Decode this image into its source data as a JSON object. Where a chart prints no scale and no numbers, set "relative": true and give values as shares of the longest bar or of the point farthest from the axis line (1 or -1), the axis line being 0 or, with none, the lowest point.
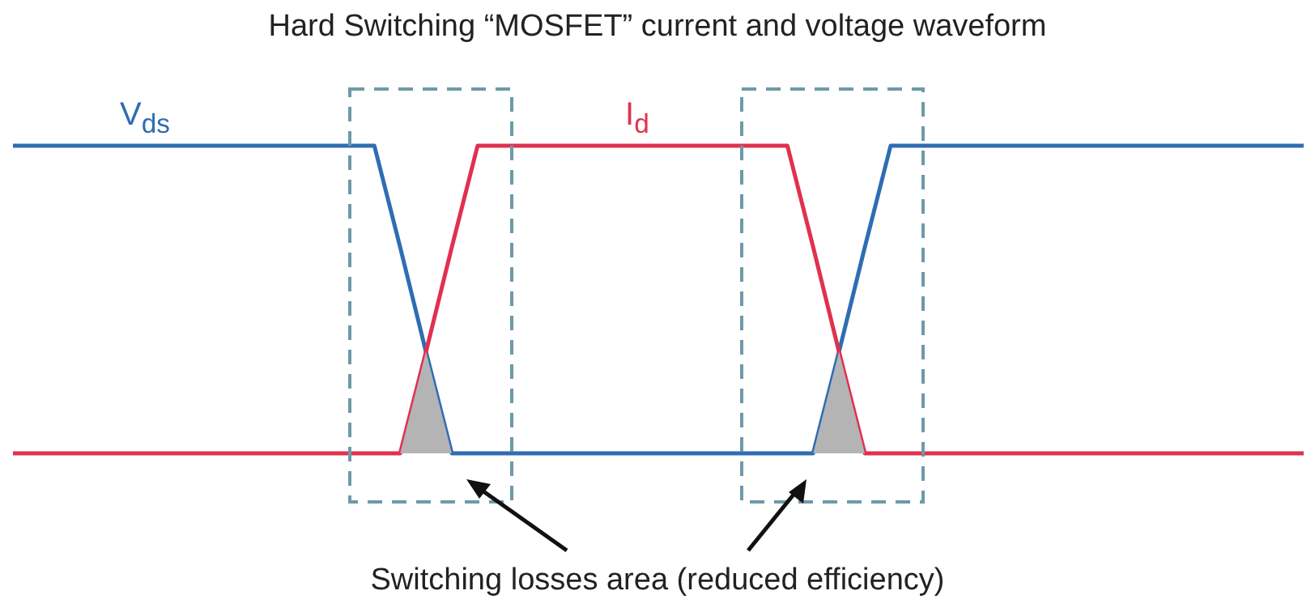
{
  "chart_data": {
    "type": "line",
    "title": "Hard Switching “MOSFET” current and voltage waveform",
    "relative": true,
    "legend": false,
    "annotations": [
      "Switching losses area (reduced efficiency)"
    ],
    "categories": [
      null,
      null,
      null,
      null,
      null,
      null,
      null,
      null,
      null,
      null,
      null,
      null,
      null,
      null,
      null,
      null,
      null,
      null,
      null,
      null,
      null,
      null,
      null,
      null,
      null,
      null,
      null,
      null,
      null,
      null,
      null,
      null,
      null,
      null,
      null,
      null,
      null,
      null,
      null,
      null,
      null,
      null,
      null,
      null,
      null,
      null,
      null,
      null,
      null,
      null,
      null
    ],
    "series": [
      {
        "name": "V$_{ds}$",
        "color": "#2f6db3",
        "values": [
          1,
          1,
          1,
          1,
          1,
          1,
          1,
          1,
          1,
          1,
          1,
          1,
          1,
          1,
          1,
          0.67,
          0.33,
          0,
          0,
          0,
          0,
          0,
          0,
          0,
          0,
          0,
          0,
          0,
          0,
          0,
          0,
          0,
          0.33,
          0.67,
          1,
          1,
          1,
          1,
          1,
          1,
          1,
          1,
          1,
          1,
          1,
          1,
          1,
          1,
          1,
          1,
          1
        ]
      },
      {
        "name": "I$_{d}$",
        "color": "#e0314f",
        "values": [
          0,
          0,
          0,
          0,
          0,
          0,
          0,
          0,
          0,
          0,
          0,
          0,
          0,
          0,
          0,
          0,
          0.33,
          0.67,
          1,
          1,
          1,
          1,
          1,
          1,
          1,
          1,
          1,
          1,
          1,
          1,
          1,
          0.67,
          0.33,
          0,
          0,
          0,
          0,
          0,
          0,
          0,
          0,
          0,
          0,
          0,
          0,
          0,
          0,
          0,
          0,
          0,
          0
        ]
      },
      {
        "type": "area",
        "color": "#b4b4b4",
        "values": [
          null,
          null,
          null,
          null,
          null,
          null,
          null,
          null,
          null,
          null,
          null,
          null,
          null,
          null,
          null,
          0,
          0.33,
          0,
          null,
          null,
          null,
          null,
          null,
          null,
          null,
          null,
          null,
          null,
          null,
          null,
          null,
          0,
          0.33,
          0,
          null,
          null,
          null,
          null,
          null,
          null,
          null,
          null,
          null,
          null,
          null,
          null,
          null,
          null,
          null,
          null,
          null
        ]
      }
    ]
  }
}
